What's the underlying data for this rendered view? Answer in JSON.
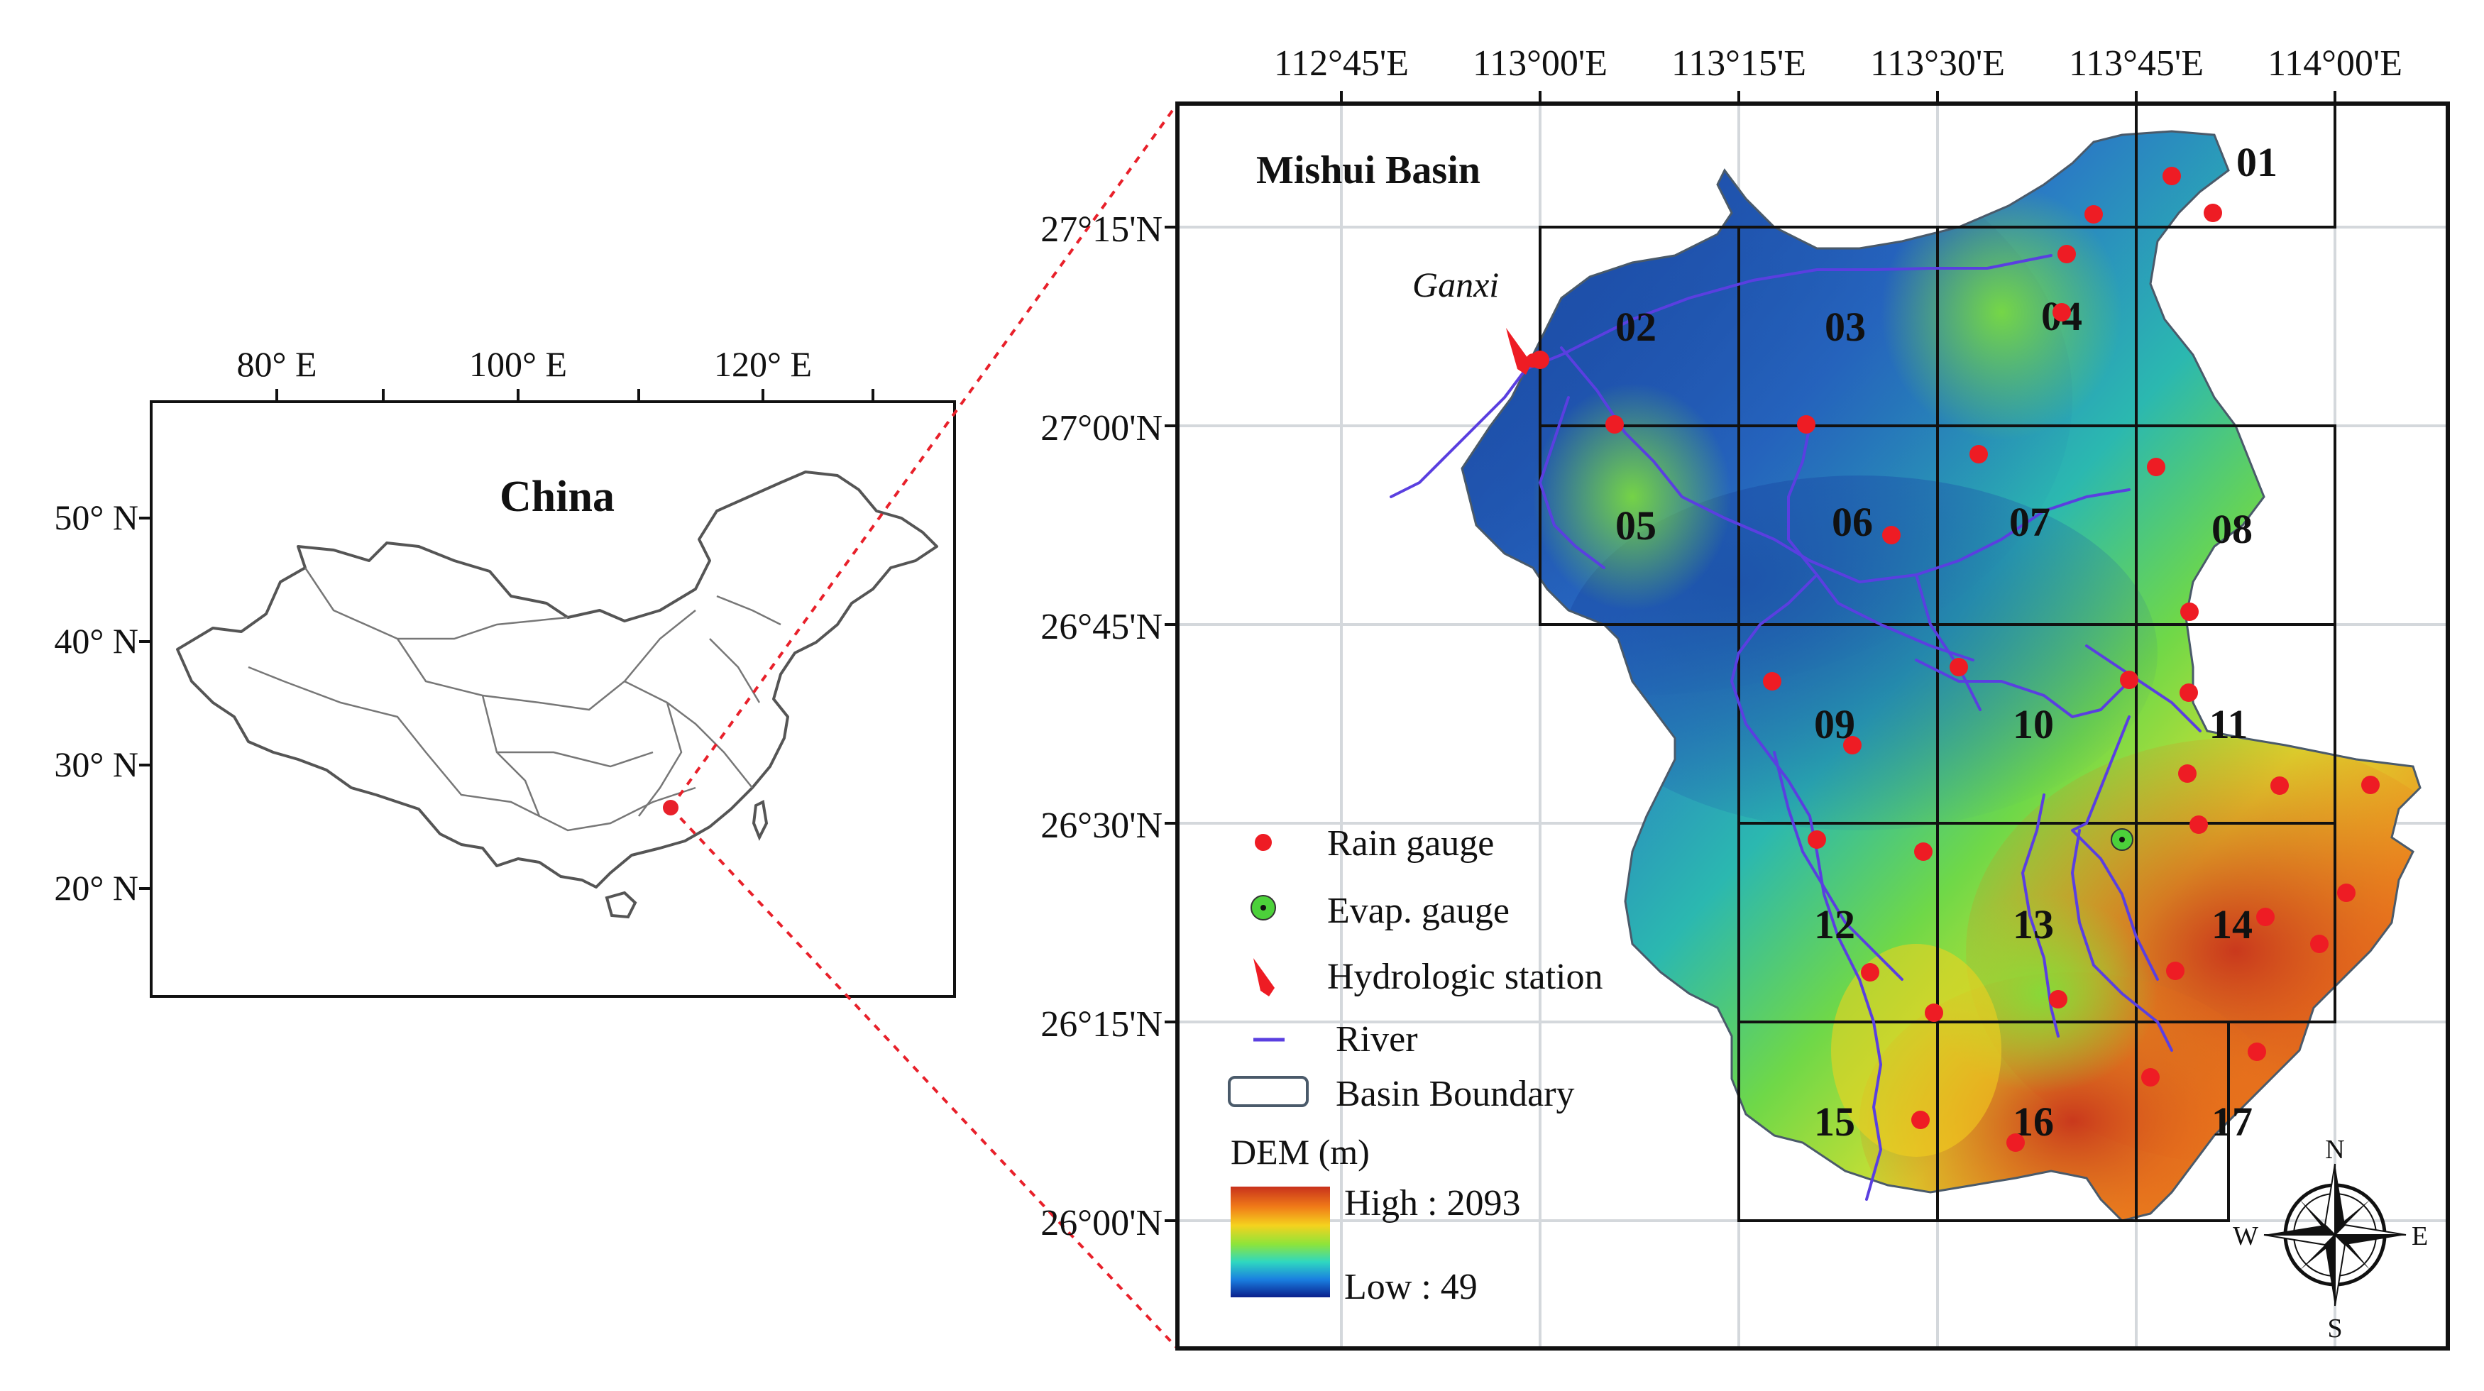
{
  "inset": {
    "title": "China",
    "lon_labels": [
      "80° E",
      "100° E",
      "120° E"
    ],
    "lat_labels": [
      "50° N",
      "40° N",
      "30° N",
      "20° N"
    ],
    "study_area_color": "#e8202a"
  },
  "main_map": {
    "title": "Mishui Basin",
    "station_name": "Ganxi",
    "lon_labels": [
      "112°45'E",
      "113°00'E",
      "113°15'E",
      "113°30'E",
      "113°45'E",
      "114°00'E"
    ],
    "lat_labels": [
      "27°15'N",
      "27°00'N",
      "26°45'N",
      "26°30'N",
      "26°15'N",
      "26°00'N"
    ],
    "grid_cells": [
      "01",
      "02",
      "03",
      "04",
      "05",
      "06",
      "07",
      "08",
      "09",
      "10",
      "11",
      "12",
      "13",
      "14",
      "15",
      "16",
      "17"
    ],
    "colors": {
      "river": "#5a3fe0",
      "rain_gauge": "#ee1c24",
      "evap_gauge": "#4cd13a",
      "dem_high": "#c8321c",
      "dem_low": "#0a1f8c"
    }
  },
  "legend": {
    "rain_gauge": "Rain gauge",
    "evap_gauge": "Evap. gauge",
    "hydrologic_station": "Hydrologic station",
    "river": "River",
    "basin_boundary": "Basin Boundary",
    "dem_title": "DEM (m)",
    "dem_high": "High : 2093",
    "dem_low": "Low : 49"
  },
  "north_arrow": {
    "n": "N",
    "s": "S",
    "e": "E",
    "w": "W"
  }
}
